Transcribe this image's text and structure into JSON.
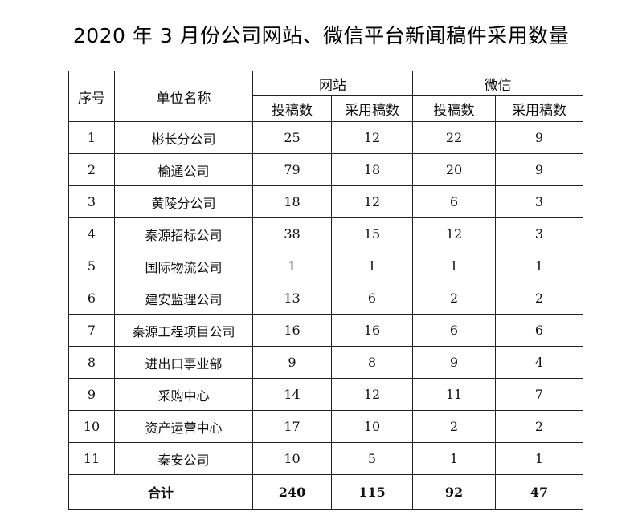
{
  "title": "2020 年 3 月份公司网站、微信平台新闻稿件采用数量",
  "headers": {
    "seq": "序号",
    "unit": "单位名称",
    "website": "网站",
    "wechat": "微信",
    "submitted": "投稿数",
    "adopted": "采用稿数"
  },
  "rows": [
    {
      "seq": "1",
      "unit": "彬长分公司",
      "web_submitted": "25",
      "web_adopted": "12",
      "wx_submitted": "22",
      "wx_adopted": "9"
    },
    {
      "seq": "2",
      "unit": "榆通公司",
      "web_submitted": "79",
      "web_adopted": "18",
      "wx_submitted": "20",
      "wx_adopted": "9"
    },
    {
      "seq": "3",
      "unit": "黄陵分公司",
      "web_submitted": "18",
      "web_adopted": "12",
      "wx_submitted": "6",
      "wx_adopted": "3"
    },
    {
      "seq": "4",
      "unit": "秦源招标公司",
      "web_submitted": "38",
      "web_adopted": "15",
      "wx_submitted": "12",
      "wx_adopted": "3"
    },
    {
      "seq": "5",
      "unit": "国际物流公司",
      "web_submitted": "1",
      "web_adopted": "1",
      "wx_submitted": "1",
      "wx_adopted": "1"
    },
    {
      "seq": "6",
      "unit": "建安监理公司",
      "web_submitted": "13",
      "web_adopted": "6",
      "wx_submitted": "2",
      "wx_adopted": "2"
    },
    {
      "seq": "7",
      "unit": "秦源工程项目公司",
      "web_submitted": "16",
      "web_adopted": "16",
      "wx_submitted": "6",
      "wx_adopted": "6"
    },
    {
      "seq": "8",
      "unit": "进出口事业部",
      "web_submitted": "9",
      "web_adopted": "8",
      "wx_submitted": "9",
      "wx_adopted": "4"
    },
    {
      "seq": "9",
      "unit": "采购中心",
      "web_submitted": "14",
      "web_adopted": "12",
      "wx_submitted": "11",
      "wx_adopted": "7"
    },
    {
      "seq": "10",
      "unit": "资产运营中心",
      "web_submitted": "17",
      "web_adopted": "10",
      "wx_submitted": "2",
      "wx_adopted": "2"
    },
    {
      "seq": "11",
      "unit": "秦安公司",
      "web_submitted": "10",
      "web_adopted": "5",
      "wx_submitted": "1",
      "wx_adopted": "1"
    }
  ],
  "total": {
    "label": "合计",
    "web_submitted": "240",
    "web_adopted": "115",
    "wx_submitted": "92",
    "wx_adopted": "47"
  }
}
